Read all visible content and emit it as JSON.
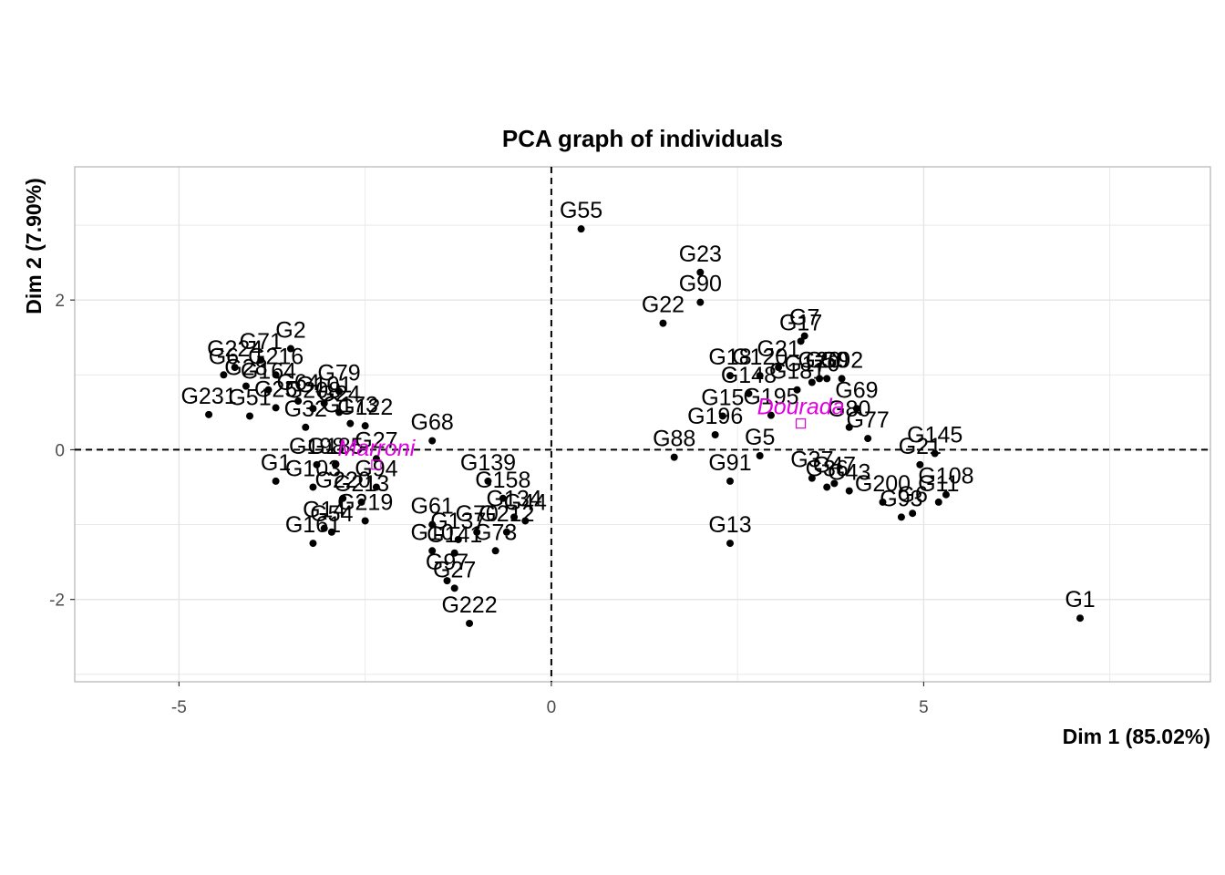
{
  "chart_data": {
    "type": "scatter",
    "title": "PCA graph of individuals",
    "xlabel": "Dim 1 (85.02%)",
    "ylabel": "Dim 2 (7.90%)",
    "xlim": [
      -6.4,
      8.85
    ],
    "ylim": [
      -3.1,
      3.78
    ],
    "xticks": [
      -5,
      0,
      5
    ],
    "yticks": [
      -2,
      0,
      2
    ],
    "grid": true,
    "reference_lines": {
      "x": 0,
      "y": 0
    },
    "colors": {
      "points": "#000000",
      "supplementary": "#e000e0",
      "grid": "#e5e5e5",
      "panel_border": "#b3b3b3"
    },
    "points": [
      {
        "label": "G55",
        "x": 0.4,
        "y": 2.95
      },
      {
        "label": "G23",
        "x": 2.0,
        "y": 2.37
      },
      {
        "label": "G90",
        "x": 2.0,
        "y": 1.97
      },
      {
        "label": "G22",
        "x": 1.5,
        "y": 1.69
      },
      {
        "label": "G7",
        "x": 3.4,
        "y": 1.52
      },
      {
        "label": "G17",
        "x": 3.35,
        "y": 1.45
      },
      {
        "label": "G18",
        "x": 2.4,
        "y": 0.99
      },
      {
        "label": "G21",
        "x": 3.05,
        "y": 1.1
      },
      {
        "label": "G20",
        "x": 3.6,
        "y": 0.95
      },
      {
        "label": "G120",
        "x": 2.8,
        "y": 0.99
      },
      {
        "label": "G50",
        "x": 3.7,
        "y": 0.95
      },
      {
        "label": "G170",
        "x": 3.5,
        "y": 0.9
      },
      {
        "label": "G92",
        "x": 3.9,
        "y": 0.95
      },
      {
        "label": "G148",
        "x": 2.65,
        "y": 0.75
      },
      {
        "label": "G181",
        "x": 3.3,
        "y": 0.8
      },
      {
        "label": "G15",
        "x": 2.3,
        "y": 0.45
      },
      {
        "label": "G195",
        "x": 2.95,
        "y": 0.46
      },
      {
        "label": "G69",
        "x": 4.1,
        "y": 0.55
      },
      {
        "label": "G77",
        "x": 4.25,
        "y": 0.15
      },
      {
        "label": "G80",
        "x": 4.0,
        "y": 0.3
      },
      {
        "label": "G196",
        "x": 2.2,
        "y": 0.2
      },
      {
        "label": "G88",
        "x": 1.65,
        "y": -0.1
      },
      {
        "label": "G5",
        "x": 2.8,
        "y": -0.08
      },
      {
        "label": "G91",
        "x": 2.4,
        "y": -0.42
      },
      {
        "label": "G36",
        "x": 3.7,
        "y": -0.5
      },
      {
        "label": "G37",
        "x": 3.5,
        "y": -0.38
      },
      {
        "label": "G43",
        "x": 4.0,
        "y": -0.55
      },
      {
        "label": "G47",
        "x": 3.8,
        "y": -0.45
      },
      {
        "label": "G200",
        "x": 4.45,
        "y": -0.7
      },
      {
        "label": "G93",
        "x": 4.7,
        "y": -0.9
      },
      {
        "label": "G6",
        "x": 4.85,
        "y": -0.85
      },
      {
        "label": "G21b",
        "x": 4.95,
        "y": -0.2
      },
      {
        "label": "G145",
        "x": 5.15,
        "y": -0.05
      },
      {
        "label": "G108",
        "x": 5.3,
        "y": -0.6
      },
      {
        "label": "G11",
        "x": 5.2,
        "y": -0.7
      },
      {
        "label": "G13",
        "x": 2.4,
        "y": -1.25
      },
      {
        "label": "G1",
        "x": 7.1,
        "y": -2.25
      },
      {
        "label": "G2",
        "x": -3.5,
        "y": 1.35
      },
      {
        "label": "G224",
        "x": -4.25,
        "y": 1.1
      },
      {
        "label": "G71",
        "x": -3.9,
        "y": 1.2
      },
      {
        "label": "G6b",
        "x": -4.4,
        "y": 1.0
      },
      {
        "label": "G79",
        "x": -2.85,
        "y": 0.78
      },
      {
        "label": "G216",
        "x": -3.7,
        "y": 1.0
      },
      {
        "label": "G231",
        "x": -4.6,
        "y": 0.47
      },
      {
        "label": "G28",
        "x": -4.1,
        "y": 0.85
      },
      {
        "label": "G164",
        "x": -3.8,
        "y": 0.8
      },
      {
        "label": "G101",
        "x": -3.05,
        "y": 0.62
      },
      {
        "label": "G64",
        "x": -3.4,
        "y": 0.65
      },
      {
        "label": "G25",
        "x": -3.7,
        "y": 0.56
      },
      {
        "label": "G51",
        "x": -4.05,
        "y": 0.45
      },
      {
        "label": "G24",
        "x": -2.85,
        "y": 0.5
      },
      {
        "label": "G208",
        "x": -3.2,
        "y": 0.55
      },
      {
        "label": "G173",
        "x": -2.7,
        "y": 0.35
      },
      {
        "label": "G68",
        "x": -1.6,
        "y": 0.12
      },
      {
        "label": "G122",
        "x": -2.5,
        "y": 0.32
      },
      {
        "label": "G32",
        "x": -3.3,
        "y": 0.3
      },
      {
        "label": "G198",
        "x": -3.15,
        "y": -0.2
      },
      {
        "label": "G27b",
        "x": -2.35,
        "y": -0.12
      },
      {
        "label": "G185",
        "x": -2.9,
        "y": -0.2
      },
      {
        "label": "G1b",
        "x": -3.7,
        "y": -0.42
      },
      {
        "label": "G103",
        "x": -3.2,
        "y": -0.5
      },
      {
        "label": "G94",
        "x": -2.35,
        "y": -0.5
      },
      {
        "label": "G220",
        "x": -2.8,
        "y": -0.65
      },
      {
        "label": "G213",
        "x": -2.55,
        "y": -0.7
      },
      {
        "label": "G219",
        "x": -2.5,
        "y": -0.95
      },
      {
        "label": "G14",
        "x": -3.05,
        "y": -1.05
      },
      {
        "label": "G54",
        "x": -2.95,
        "y": -1.1
      },
      {
        "label": "G161",
        "x": -3.2,
        "y": -1.25
      },
      {
        "label": "G139",
        "x": -0.85,
        "y": -0.42
      },
      {
        "label": "G158",
        "x": -0.65,
        "y": -0.65
      },
      {
        "label": "G134",
        "x": -0.5,
        "y": -0.9
      },
      {
        "label": "G44",
        "x": -0.35,
        "y": -0.95
      },
      {
        "label": "G61",
        "x": -1.6,
        "y": -1.0
      },
      {
        "label": "G137",
        "x": -1.25,
        "y": -1.2
      },
      {
        "label": "G70",
        "x": -1.0,
        "y": -1.1
      },
      {
        "label": "G212",
        "x": -0.6,
        "y": -1.1
      },
      {
        "label": "G73",
        "x": -0.75,
        "y": -1.35
      },
      {
        "label": "G10",
        "x": -1.6,
        "y": -1.35
      },
      {
        "label": "G141",
        "x": -1.3,
        "y": -1.38
      },
      {
        "label": "G97",
        "x": -1.4,
        "y": -1.75
      },
      {
        "label": "G27",
        "x": -1.3,
        "y": -1.85
      },
      {
        "label": "G222",
        "x": -1.1,
        "y": -2.32
      }
    ],
    "supplementary": [
      {
        "label": "Dourada",
        "x": 3.35,
        "y": 0.35
      },
      {
        "label": "Marroni",
        "x": -2.35,
        "y": -0.2
      }
    ]
  }
}
